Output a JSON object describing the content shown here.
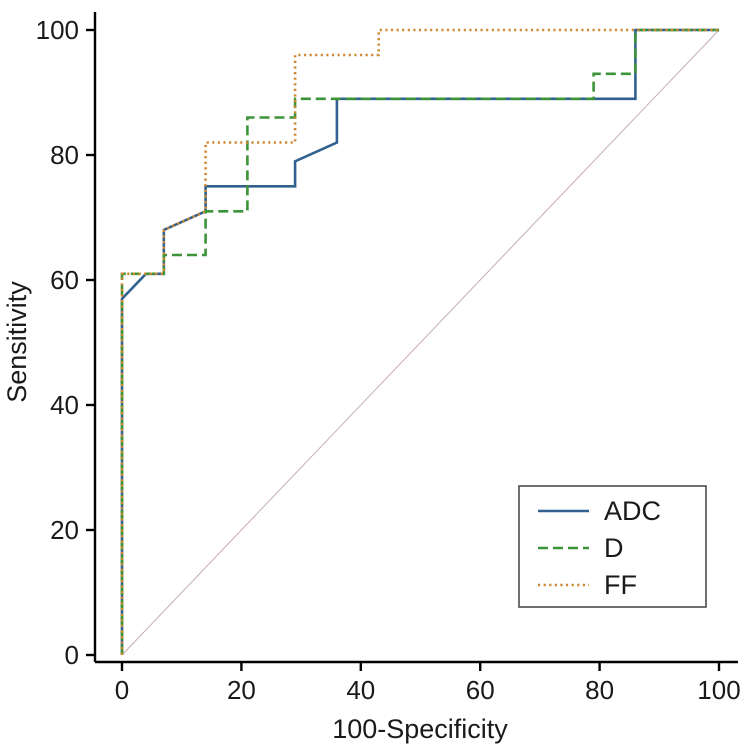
{
  "chart_data": {
    "type": "line",
    "subtype": "roc-curve",
    "title": "",
    "xlabel": "100-Specificity",
    "ylabel": "Sensitivity",
    "xlim": [
      0,
      100
    ],
    "ylim": [
      0,
      100
    ],
    "xticks": [
      0,
      20,
      40,
      60,
      80,
      100
    ],
    "yticks": [
      0,
      20,
      40,
      60,
      80,
      100
    ],
    "grid": false,
    "legend_position": "lower-right",
    "background_color": "#ffffff",
    "axis_color": "#000000",
    "reference_line": {
      "name": "chance-diagonal",
      "color": "#c9adad",
      "points": [
        [
          0,
          0
        ],
        [
          100,
          100
        ]
      ]
    },
    "series": [
      {
        "name": "ADC",
        "color": "#31618f",
        "line_style": "solid",
        "points": [
          [
            0,
            0
          ],
          [
            0,
            57
          ],
          [
            4,
            61
          ],
          [
            7,
            61
          ],
          [
            7,
            68
          ],
          [
            14,
            71
          ],
          [
            14,
            75
          ],
          [
            29,
            75
          ],
          [
            29,
            79
          ],
          [
            36,
            82
          ],
          [
            36,
            89
          ],
          [
            86,
            89
          ],
          [
            86,
            100
          ],
          [
            100,
            100
          ]
        ]
      },
      {
        "name": "D",
        "color": "#3c9439",
        "line_style": "dashed",
        "points": [
          [
            0,
            0
          ],
          [
            0,
            61
          ],
          [
            7,
            61
          ],
          [
            7,
            64
          ],
          [
            14,
            64
          ],
          [
            14,
            71
          ],
          [
            21,
            71
          ],
          [
            21,
            86
          ],
          [
            29,
            86
          ],
          [
            29,
            89
          ],
          [
            79,
            89
          ],
          [
            79,
            93
          ],
          [
            86,
            93
          ],
          [
            86,
            100
          ],
          [
            100,
            100
          ]
        ]
      },
      {
        "name": "FF",
        "color": "#cd8a33",
        "line_style": "dotted",
        "points": [
          [
            0,
            0
          ],
          [
            0,
            61
          ],
          [
            7,
            61
          ],
          [
            7,
            68
          ],
          [
            14,
            71
          ],
          [
            14,
            82
          ],
          [
            29,
            82
          ],
          [
            29,
            96
          ],
          [
            43,
            96
          ],
          [
            43,
            100
          ],
          [
            100,
            100
          ]
        ]
      }
    ]
  }
}
